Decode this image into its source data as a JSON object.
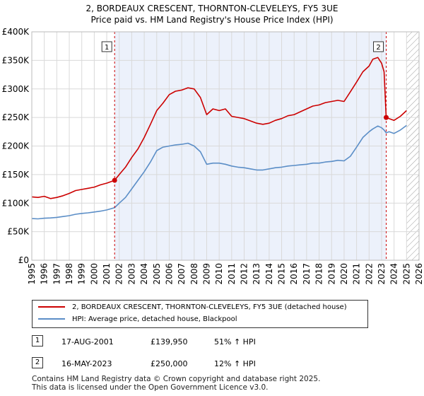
{
  "title": {
    "line1": "2, BORDEAUX CRESCENT, THORNTON-CLEVELEYS, FY5 3UE",
    "line2": "Price paid vs. HM Land Registry's House Price Index (HPI)"
  },
  "chart_data": {
    "type": "line",
    "title": "2, BORDEAUX CRESCENT, THORNTON-CLEVELEYS, FY5 3UE",
    "subtitle": "Price paid vs. HM Land Registry's House Price Index (HPI)",
    "xlim": [
      1995,
      2026
    ],
    "ylim": [
      0,
      400000
    ],
    "x_ticks": [
      "1995",
      "1996",
      "1997",
      "1998",
      "1999",
      "2000",
      "2001",
      "2002",
      "2003",
      "2004",
      "2005",
      "2006",
      "2007",
      "2008",
      "2009",
      "2010",
      "2011",
      "2012",
      "2013",
      "2014",
      "2015",
      "2016",
      "2017",
      "2018",
      "2019",
      "2020",
      "2021",
      "2022",
      "2023",
      "2024",
      "2025",
      "2026"
    ],
    "y_ticks": [
      {
        "value": 0,
        "label": "£0"
      },
      {
        "value": 50000,
        "label": "£50K"
      },
      {
        "value": 100000,
        "label": "£100K"
      },
      {
        "value": 150000,
        "label": "£150K"
      },
      {
        "value": 200000,
        "label": "£200K"
      },
      {
        "value": 250000,
        "label": "£250K"
      },
      {
        "value": 300000,
        "label": "£300K"
      },
      {
        "value": 350000,
        "label": "£350K"
      },
      {
        "value": 400000,
        "label": "£400K"
      }
    ],
    "grid": true,
    "ownership_periods": [
      [
        2001.63,
        2023.37
      ]
    ],
    "future_hatch_from": 2025.0,
    "series": [
      {
        "name": "2, BORDEAUX CRESCENT, THORNTON-CLEVELEYS, FY5 3UE (detached house)",
        "color": "#cc0000",
        "x": [
          1995.0,
          1995.5,
          1996.0,
          1996.5,
          1997.0,
          1997.5,
          1998.0,
          1998.5,
          1999.0,
          1999.5,
          2000.0,
          2000.5,
          2001.0,
          2001.63,
          2002.0,
          2002.5,
          2003.0,
          2003.5,
          2004.0,
          2004.5,
          2005.0,
          2005.5,
          2006.0,
          2006.5,
          2007.0,
          2007.5,
          2008.0,
          2008.5,
          2009.0,
          2009.5,
          2010.0,
          2010.5,
          2011.0,
          2011.5,
          2012.0,
          2012.5,
          2013.0,
          2013.5,
          2014.0,
          2014.5,
          2015.0,
          2015.5,
          2016.0,
          2016.5,
          2017.0,
          2017.5,
          2018.0,
          2018.5,
          2019.0,
          2019.5,
          2020.0,
          2020.5,
          2021.0,
          2021.5,
          2022.0,
          2022.3,
          2022.7,
          2023.0,
          2023.2,
          2023.37,
          2023.6,
          2024.0,
          2024.5,
          2025.0
        ],
        "values": [
          111000,
          110000,
          112000,
          108000,
          110000,
          113000,
          117000,
          122000,
          124000,
          126000,
          128000,
          132000,
          135000,
          139950,
          150000,
          163000,
          180000,
          195000,
          215000,
          238000,
          262000,
          275000,
          290000,
          296000,
          298000,
          302000,
          300000,
          285000,
          255000,
          265000,
          262000,
          265000,
          252000,
          250000,
          248000,
          244000,
          240000,
          238000,
          240000,
          245000,
          248000,
          253000,
          255000,
          260000,
          265000,
          270000,
          272000,
          276000,
          278000,
          280000,
          278000,
          295000,
          312000,
          330000,
          340000,
          352000,
          355000,
          345000,
          330000,
          250000,
          248000,
          245000,
          252000,
          262000
        ]
      },
      {
        "name": "HPI: Average price, detached house, Blackpool",
        "color": "#5b8ec7",
        "x": [
          1995.0,
          1995.5,
          1996.0,
          1996.5,
          1997.0,
          1997.5,
          1998.0,
          1998.5,
          1999.0,
          1999.5,
          2000.0,
          2000.5,
          2001.0,
          2001.63,
          2002.0,
          2002.5,
          2003.0,
          2003.5,
          2004.0,
          2004.5,
          2005.0,
          2005.5,
          2006.0,
          2006.5,
          2007.0,
          2007.5,
          2008.0,
          2008.5,
          2009.0,
          2009.5,
          2010.0,
          2010.5,
          2011.0,
          2011.5,
          2012.0,
          2012.5,
          2013.0,
          2013.5,
          2014.0,
          2014.5,
          2015.0,
          2015.5,
          2016.0,
          2016.5,
          2017.0,
          2017.5,
          2018.0,
          2018.5,
          2019.0,
          2019.5,
          2020.0,
          2020.5,
          2021.0,
          2021.5,
          2022.0,
          2022.3,
          2022.7,
          2023.0,
          2023.2,
          2023.37,
          2023.6,
          2024.0,
          2024.5,
          2025.0
        ],
        "values": [
          73000,
          72500,
          73500,
          74000,
          75000,
          76500,
          78000,
          80500,
          82000,
          83000,
          84500,
          86000,
          88000,
          92000,
          100000,
          110000,
          125000,
          140000,
          155000,
          172000,
          192000,
          198000,
          200000,
          202000,
          203000,
          205000,
          200000,
          190000,
          168000,
          170000,
          170000,
          168000,
          165000,
          163000,
          162000,
          160000,
          158000,
          158000,
          160000,
          162000,
          163000,
          165000,
          166000,
          167000,
          168000,
          170000,
          170000,
          172000,
          173000,
          175000,
          174000,
          182000,
          198000,
          215000,
          225000,
          230000,
          235000,
          232000,
          228000,
          223000,
          225000,
          222000,
          228000,
          236000
        ]
      }
    ],
    "sale_markers": [
      {
        "id": "1",
        "x": 2001.63,
        "value": 139950
      },
      {
        "id": "2",
        "x": 2023.37,
        "value": 250000
      }
    ]
  },
  "legend": {
    "items": [
      {
        "label": "2, BORDEAUX CRESCENT, THORNTON-CLEVELEYS, FY5 3UE (detached house)",
        "color": "#cc0000"
      },
      {
        "label": "HPI: Average price, detached house, Blackpool",
        "color": "#5b8ec7"
      }
    ]
  },
  "sales": [
    {
      "id": "1",
      "date": "17-AUG-2001",
      "price": "£139,950",
      "hpi": "51% ↑ HPI"
    },
    {
      "id": "2",
      "date": "16-MAY-2023",
      "price": "£250,000",
      "hpi": "12% ↑ HPI"
    }
  ],
  "footer": {
    "line1": "Contains HM Land Registry data © Crown copyright and database right 2025.",
    "line2": "This data is licensed under the Open Government Licence v3.0."
  }
}
